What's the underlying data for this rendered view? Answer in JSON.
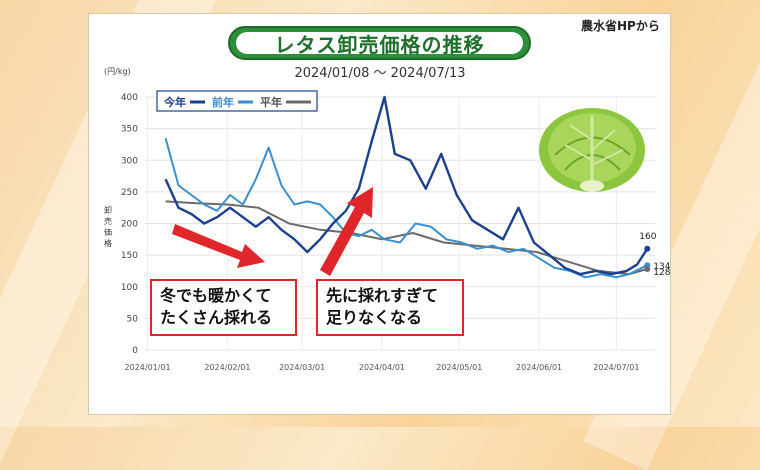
{
  "source_label": "農水省HPから",
  "title": "レタス卸売価格の推移",
  "subtitle": "2024/01/08 ～ 2024/07/13",
  "unit": "(円/kg)",
  "ylabel": "卸売価格",
  "legend": {
    "this_year": "今年",
    "last_year": "前年",
    "average": "平年"
  },
  "callouts": [
    "冬でも暖かくて",
    "たくさん採れる",
    "先に採れすぎて",
    "足りなくなる"
  ],
  "colors": {
    "this_year": "#1c3f8f",
    "last_year": "#3a8fd0",
    "average": "#6b6b6b",
    "arrow": "#e0262b",
    "title_green": "#2c8f3a"
  },
  "chart_data": {
    "type": "line",
    "title": "レタス卸売価格の推移",
    "ylabel": "卸売価格",
    "ylim": [
      0,
      400
    ],
    "yticks": [
      0,
      50,
      100,
      150,
      200,
      250,
      300,
      350,
      400
    ],
    "xlim": [
      "2023-12-31",
      "2024-07-16"
    ],
    "xticks": [
      "2024/01/01",
      "2024/02/01",
      "2024/03/01",
      "2024/04/01",
      "2024/05/01",
      "2024/06/01",
      "2024/07/01"
    ],
    "end_labels": [
      "160",
      "134",
      "128"
    ],
    "series": [
      {
        "name": "今年",
        "x": [
          "2024-01-08",
          "2024-01-13",
          "2024-01-18",
          "2024-01-23",
          "2024-01-28",
          "2024-02-02",
          "2024-02-07",
          "2024-02-12",
          "2024-02-17",
          "2024-02-22",
          "2024-02-27",
          "2024-03-03",
          "2024-03-08",
          "2024-03-13",
          "2024-03-18",
          "2024-03-23",
          "2024-03-28",
          "2024-04-02",
          "2024-04-06",
          "2024-04-12",
          "2024-04-18",
          "2024-04-24",
          "2024-04-30",
          "2024-05-06",
          "2024-05-12",
          "2024-05-18",
          "2024-05-24",
          "2024-05-30",
          "2024-06-05",
          "2024-06-11",
          "2024-06-17",
          "2024-06-23",
          "2024-06-29",
          "2024-07-05",
          "2024-07-09",
          "2024-07-13"
        ],
        "values": [
          270,
          225,
          215,
          200,
          210,
          225,
          210,
          195,
          210,
          190,
          175,
          155,
          175,
          200,
          220,
          255,
          330,
          400,
          310,
          300,
          255,
          310,
          245,
          205,
          190,
          175,
          225,
          170,
          150,
          130,
          120,
          125,
          120,
          125,
          135,
          160
        ]
      },
      {
        "name": "前年",
        "x": [
          "2024-01-08",
          "2024-01-13",
          "2024-01-18",
          "2024-01-23",
          "2024-01-28",
          "2024-02-02",
          "2024-02-07",
          "2024-02-12",
          "2024-02-17",
          "2024-02-22",
          "2024-02-27",
          "2024-03-03",
          "2024-03-08",
          "2024-03-13",
          "2024-03-18",
          "2024-03-23",
          "2024-03-28",
          "2024-04-02",
          "2024-04-08",
          "2024-04-14",
          "2024-04-20",
          "2024-04-26",
          "2024-05-02",
          "2024-05-08",
          "2024-05-14",
          "2024-05-20",
          "2024-05-26",
          "2024-06-01",
          "2024-06-07",
          "2024-06-13",
          "2024-06-19",
          "2024-06-25",
          "2024-07-01",
          "2024-07-06",
          "2024-07-13"
        ],
        "values": [
          335,
          260,
          245,
          230,
          220,
          245,
          230,
          270,
          320,
          260,
          230,
          235,
          230,
          210,
          185,
          180,
          190,
          175,
          170,
          200,
          195,
          175,
          170,
          160,
          165,
          155,
          160,
          145,
          130,
          125,
          115,
          120,
          115,
          120,
          134
        ]
      },
      {
        "name": "平年",
        "x": [
          "2024-01-08",
          "2024-01-20",
          "2024-02-01",
          "2024-02-13",
          "2024-02-25",
          "2024-03-08",
          "2024-03-20",
          "2024-04-01",
          "2024-04-13",
          "2024-04-25",
          "2024-05-07",
          "2024-05-19",
          "2024-05-31",
          "2024-06-12",
          "2024-06-24",
          "2024-07-06",
          "2024-07-13"
        ],
        "values": [
          235,
          232,
          230,
          225,
          200,
          190,
          185,
          175,
          185,
          170,
          165,
          160,
          155,
          140,
          125,
          120,
          128
        ]
      }
    ]
  }
}
